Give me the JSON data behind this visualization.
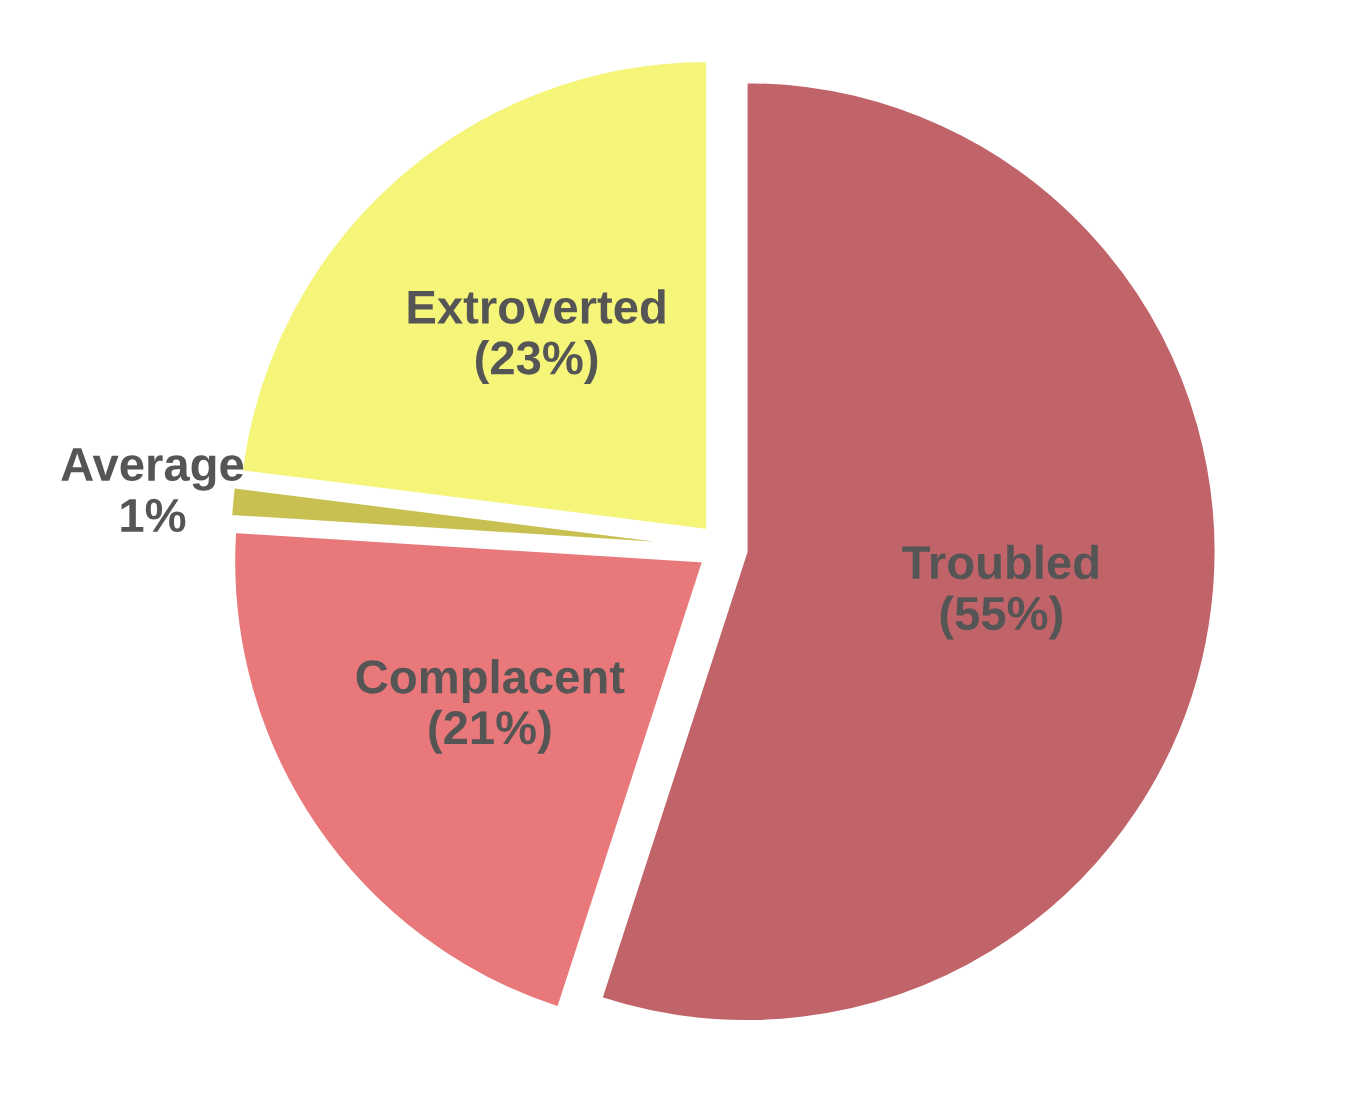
{
  "chart_data": {
    "type": "pie",
    "categories": [
      "Troubled",
      "Complacent",
      "Average",
      "Extroverted"
    ],
    "values": [
      55,
      21,
      1,
      23
    ],
    "value_labels": [
      "(55%)",
      "(21%)",
      "1%",
      "(23%)"
    ],
    "colors": [
      "#c0646a",
      "#e8787a",
      "#c8c050",
      "#f5f57a"
    ]
  }
}
